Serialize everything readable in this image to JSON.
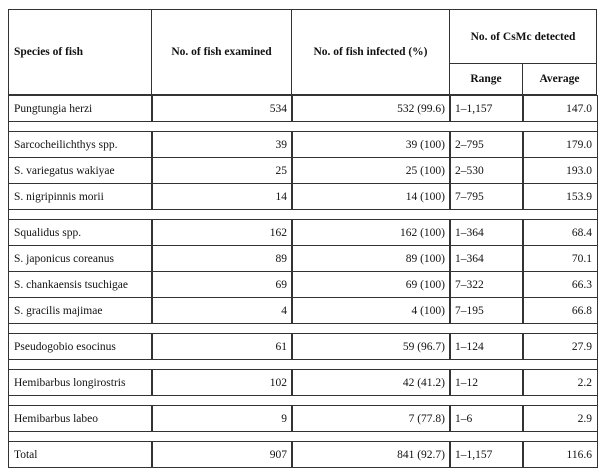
{
  "table": {
    "header": {
      "species": "Species of fish",
      "examined": "No. of fish examined",
      "infected": "No. of fish infected (%)",
      "csmc": "No. of CsMc detected",
      "range": "Range",
      "average": "Average"
    },
    "groups": [
      [
        [
          "Pungtungia herzi",
          "534",
          "532 (99.6)",
          "1–1,157",
          "147.0"
        ]
      ],
      [
        [
          "Sarcocheilichthys spp.",
          "39",
          "39 (100)",
          "2–795",
          "179.0"
        ],
        [
          "S. variegatus wakiyae",
          "25",
          "25 (100)",
          "2–530",
          "193.0"
        ],
        [
          "S. nigripinnis morii",
          "14",
          "14 (100)",
          "7–795",
          "153.9"
        ]
      ],
      [
        [
          "Squalidus spp.",
          "162",
          "162 (100)",
          "1–364",
          "68.4"
        ],
        [
          "S. japonicus coreanus",
          "89",
          "89 (100)",
          "1–364",
          "70.1"
        ],
        [
          "S. chankaensis tsuchigae",
          "69",
          "69 (100)",
          "7–322",
          "66.3"
        ],
        [
          "S. gracilis majimae",
          "4",
          "4 (100)",
          "7–195",
          "66.8"
        ]
      ],
      [
        [
          "Pseudogobio esocinus",
          "61",
          "59 (96.7)",
          "1–124",
          "27.9"
        ]
      ],
      [
        [
          "Hemibarbus longirostris",
          "102",
          "42 (41.2)",
          "1–12",
          "2.2"
        ]
      ],
      [
        [
          "Hemibarbus labeo",
          "9",
          "7 (77.8)",
          "1–6",
          "2.9"
        ]
      ],
      [
        [
          "Total",
          "907",
          "841 (92.7)",
          "1–1,157",
          "116.6"
        ]
      ]
    ]
  }
}
